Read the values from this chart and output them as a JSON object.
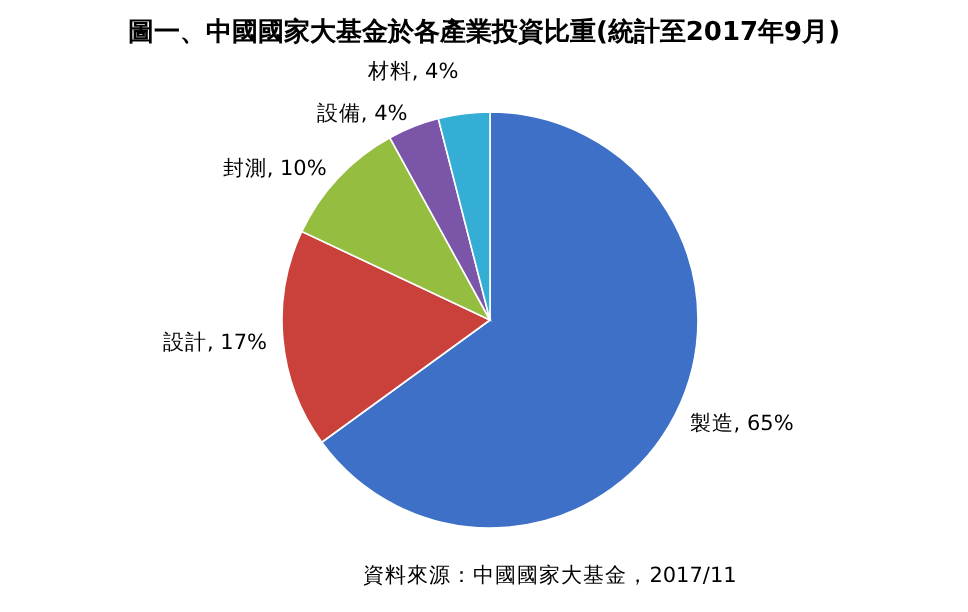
{
  "chart_data": {
    "type": "pie",
    "title": "圖一、中國國家大基金於各產業投資比重(統計至2017年9月)",
    "categories": [
      "製造",
      "設計",
      "封測",
      "設備",
      "材料"
    ],
    "values": [
      65,
      17,
      10,
      4,
      4
    ],
    "colors": [
      "#3d70c6",
      "#c9413a",
      "#95bd3f",
      "#7a55a8",
      "#35aed6"
    ],
    "value_labels": [
      "65%",
      "17%",
      "10%",
      "4%",
      "4%"
    ],
    "annotations": [
      "資料來源：中國國家大基金，2017/11"
    ]
  }
}
